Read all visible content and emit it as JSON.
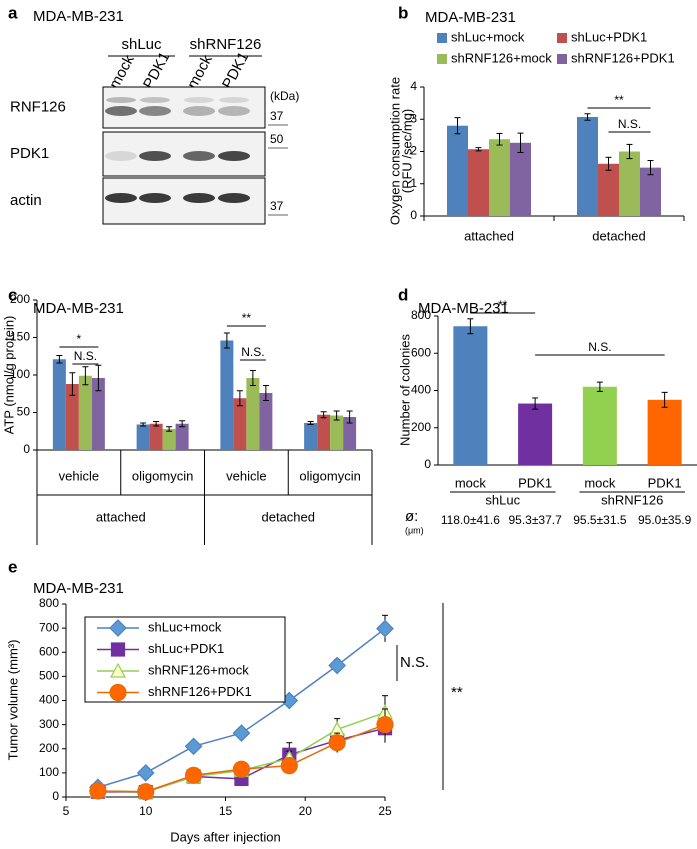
{
  "blot": {
    "panel_label": "a",
    "title": "MDA-MB-231",
    "groups": [
      "shLuc",
      "shRNF126"
    ],
    "lanes": [
      "mock",
      "PDK1",
      "mock",
      "PDK1"
    ],
    "rows": [
      "RNF126",
      "PDK1",
      "actin"
    ],
    "unit": "(kDa)",
    "markers": [
      37,
      50,
      37
    ]
  },
  "chart_data": [
    {
      "type": "bar",
      "panel_label": "b",
      "title": "MDA-MB-231",
      "ylabel": [
        "Oxygen consumption rate",
        "(RFU /sec/mg)"
      ],
      "categories": [
        "attached",
        "detached"
      ],
      "series": [
        {
          "name": "shLuc+mock",
          "color": "#4f81bd",
          "values": [
            2.8,
            3.07
          ],
          "errors": [
            0.25,
            0.1
          ]
        },
        {
          "name": "shLuc+PDK1",
          "color": "#c0504d",
          "values": [
            2.07,
            1.62
          ],
          "errors": [
            0.05,
            0.2
          ]
        },
        {
          "name": "shRNF126+mock",
          "color": "#9bbb59",
          "values": [
            2.38,
            2.0
          ],
          "errors": [
            0.18,
            0.22
          ]
        },
        {
          "name": "shRNF126+PDK1",
          "color": "#8064a2",
          "values": [
            2.27,
            1.5
          ],
          "errors": [
            0.3,
            0.22
          ]
        }
      ],
      "ylim": [
        0,
        4
      ],
      "yticks": [
        0,
        1,
        2,
        3,
        4
      ],
      "annotations": [
        "**",
        "N.S."
      ]
    },
    {
      "type": "bar",
      "panel_label": "c",
      "title": "MDA-MB-231",
      "ylabel": "ATP (nmol/g protein)",
      "categories": [
        "vehicle",
        "oligomycin",
        "vehicle",
        "oligomycin"
      ],
      "groups": [
        "attached",
        "detached"
      ],
      "series": [
        {
          "color": "#4f81bd",
          "values": [
            121,
            34,
            146,
            36
          ],
          "errors": [
            5,
            2,
            10,
            2
          ]
        },
        {
          "color": "#c0504d",
          "values": [
            88,
            35,
            69,
            47
          ],
          "errors": [
            15,
            3,
            10,
            4
          ]
        },
        {
          "color": "#9bbb59",
          "values": [
            99,
            28,
            96,
            46
          ],
          "errors": [
            12,
            3,
            10,
            6
          ]
        },
        {
          "color": "#8064a2",
          "values": [
            96,
            35,
            76,
            44
          ],
          "errors": [
            17,
            4,
            10,
            8
          ]
        }
      ],
      "ylim": [
        0,
        200
      ],
      "yticks": [
        0,
        50,
        100,
        150,
        200
      ],
      "annotations": [
        "*",
        "N.S.",
        "**",
        "N.S."
      ]
    },
    {
      "type": "bar",
      "panel_label": "d",
      "title": "MDA-MB-231",
      "ylabel": "Number of colonies",
      "categories": [
        "mock",
        "PDK1",
        "mock",
        "PDK1"
      ],
      "groups": [
        "shLuc",
        "shRNF126"
      ],
      "values": [
        745,
        330,
        420,
        350
      ],
      "errors": [
        40,
        30,
        25,
        40
      ],
      "colors": [
        "#4f81bd",
        "#7030a0",
        "#92d050",
        "#ff6600"
      ],
      "ylim": [
        0,
        800
      ],
      "yticks": [
        0,
        200,
        400,
        600,
        800
      ],
      "annotations": [
        "**",
        "N.S."
      ],
      "diameter": {
        "label": "ø:",
        "unit": "(μm)",
        "values": [
          "118.0±41.6",
          "95.3±37.7",
          "95.5±31.5",
          "95.0±35.9"
        ]
      }
    },
    {
      "type": "line",
      "panel_label": "e",
      "title": "MDA-MB-231",
      "xlabel": "Days after injection",
      "ylabel": "Tumor volume (mm³)",
      "x": [
        7,
        10,
        13,
        16,
        19,
        22,
        25
      ],
      "series": [
        {
          "name": "shLuc+mock",
          "color": "#4f81bd",
          "marker": "diamond",
          "marker_fill": "#5b9bd5",
          "values": [
            40,
            100,
            210,
            265,
            400,
            545,
            698
          ],
          "errors": [
            5,
            8,
            10,
            10,
            20,
            25,
            55
          ]
        },
        {
          "name": "shLuc+PDK1",
          "color": "#7030a0",
          "marker": "square",
          "marker_fill": "#7030a0",
          "values": [
            22,
            20,
            85,
            75,
            175,
            235,
            285
          ],
          "errors": [
            5,
            5,
            20,
            30,
            50,
            50,
            60
          ]
        },
        {
          "name": "shRNF126+mock",
          "color": "#92d050",
          "marker": "triangle",
          "marker_fill": "#ffffcc",
          "values": [
            25,
            20,
            85,
            110,
            160,
            280,
            350
          ],
          "errors": [
            5,
            5,
            20,
            20,
            30,
            45,
            70
          ]
        },
        {
          "name": "shRNF126+PDK1",
          "color": "#e36c09",
          "marker": "circle",
          "marker_fill": "#ff6600",
          "values": [
            25,
            22,
            90,
            115,
            130,
            225,
            300
          ],
          "errors": [
            5,
            5,
            15,
            25,
            20,
            40,
            65
          ]
        }
      ],
      "xlim": [
        5,
        25
      ],
      "xticks": [
        5,
        10,
        15,
        20,
        25
      ],
      "ylim": [
        0,
        800
      ],
      "yticks": [
        0,
        100,
        200,
        300,
        400,
        500,
        600,
        700,
        800
      ],
      "legend": "top-left",
      "annotations": [
        "**",
        "N.S."
      ]
    }
  ]
}
